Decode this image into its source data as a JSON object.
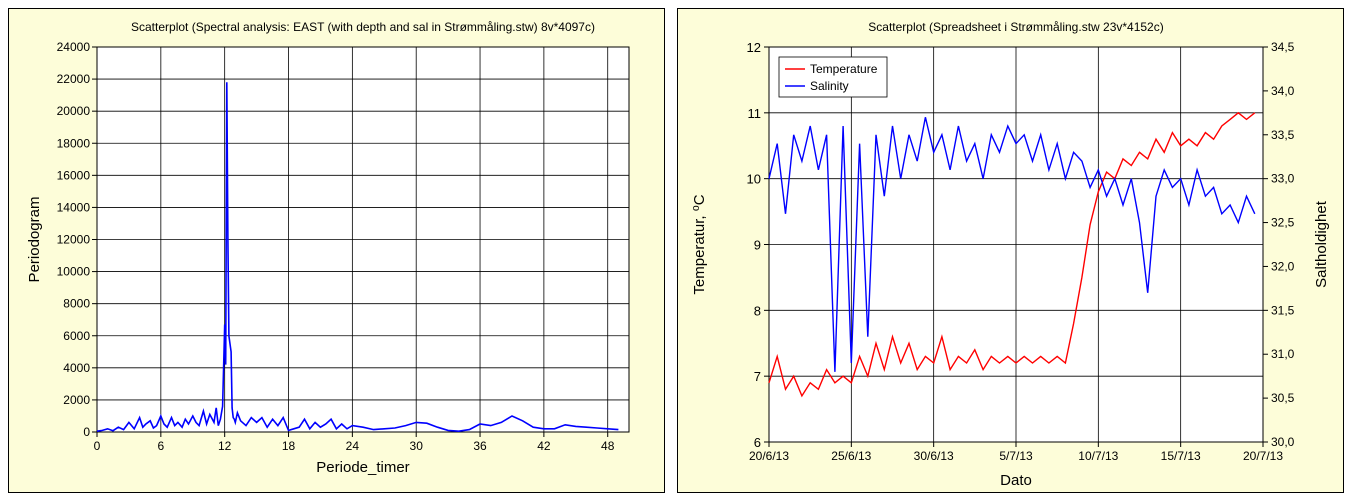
{
  "chart_data": [
    {
      "type": "line",
      "title": "Scatterplot (Spectral analysis: EAST (with depth and sal in Strømmåling.stw) 8v*4097c)",
      "xlabel": "Periode_timer",
      "ylabel": "Periodogram",
      "xlim": [
        0,
        50
      ],
      "ylim": [
        0,
        24000
      ],
      "xticks": [
        "0",
        "6",
        "12",
        "18",
        "24",
        "30",
        "36",
        "42",
        "48"
      ],
      "yticks": [
        "0",
        "2000",
        "4000",
        "6000",
        "8000",
        "10000",
        "12000",
        "14000",
        "16000",
        "18000",
        "20000",
        "22000",
        "24000"
      ],
      "grid": true,
      "series": [
        {
          "color": "#0000ff",
          "x": [
            0,
            0.5,
            1,
            1.5,
            2,
            2.5,
            3,
            3.5,
            4,
            4.3,
            4.6,
            5,
            5.3,
            5.6,
            6,
            6.3,
            6.6,
            7,
            7.3,
            7.6,
            8,
            8.3,
            8.6,
            9,
            9.3,
            9.6,
            10,
            10.3,
            10.6,
            11,
            11.2,
            11.4,
            11.6,
            11.8,
            12.0,
            12.1,
            12.2,
            12.3,
            12.4,
            12.5,
            12.6,
            12.7,
            12.8,
            12.9,
            13.0,
            13.2,
            13.5,
            14,
            14.5,
            15,
            15.5,
            16,
            16.5,
            17,
            17.5,
            18,
            18.5,
            19,
            19.5,
            20,
            20.5,
            21,
            21.5,
            22,
            22.5,
            23,
            23.5,
            24,
            25,
            26,
            27,
            28,
            29,
            30,
            31,
            32,
            33,
            34,
            35,
            36,
            37,
            38,
            39,
            40,
            41,
            42,
            43,
            44,
            45,
            46,
            47,
            48,
            49
          ],
          "y": [
            50,
            100,
            200,
            80,
            300,
            150,
            600,
            200,
            900,
            300,
            500,
            700,
            250,
            400,
            1000,
            500,
            300,
            900,
            400,
            600,
            300,
            800,
            500,
            1000,
            600,
            400,
            1300,
            500,
            1100,
            600,
            1500,
            400,
            800,
            1600,
            6700,
            4200,
            21800,
            12000,
            6000,
            5500,
            5000,
            1500,
            900,
            800,
            600,
            1200,
            700,
            400,
            900,
            600,
            900,
            300,
            800,
            400,
            900,
            100,
            200,
            300,
            800,
            200,
            600,
            300,
            500,
            800,
            200,
            500,
            200,
            400,
            300,
            150,
            200,
            250,
            400,
            600,
            550,
            300,
            100,
            50,
            150,
            500,
            400,
            600,
            1000,
            700,
            300,
            200,
            200,
            450,
            350,
            300,
            250,
            200,
            150
          ]
        }
      ]
    },
    {
      "type": "line",
      "title": "Scatterplot (Spreadsheet i Strømmåling.stw 23v*4152c)",
      "xlabel": "Dato",
      "ylabel": "Temperatur, ⁰C",
      "y2label": "Saltholdighet",
      "xlim": [
        "20/6/13",
        "20/7/13"
      ],
      "ylim": [
        6,
        12
      ],
      "y2lim": [
        30.0,
        34.5
      ],
      "xticks": [
        "20/6/13",
        "25/6/13",
        "30/6/13",
        "5/7/13",
        "10/7/13",
        "15/7/13",
        "20/7/13"
      ],
      "yticks": [
        "6",
        "7",
        "8",
        "9",
        "10",
        "11",
        "12"
      ],
      "y2ticks": [
        "30,0",
        "30,5",
        "31,0",
        "31,5",
        "32,0",
        "32,5",
        "33,0",
        "33,5",
        "34,0",
        "34,5"
      ],
      "grid": true,
      "legend": "top-left",
      "series": [
        {
          "name": "Temperature",
          "color": "#ff0000",
          "axis": "left",
          "x": [
            0,
            0.5,
            1,
            1.5,
            2,
            2.5,
            3,
            3.5,
            4,
            4.5,
            5,
            5.5,
            6,
            6.5,
            7,
            7.5,
            8,
            8.5,
            9,
            9.5,
            10,
            10.5,
            11,
            11.5,
            12,
            12.5,
            13,
            13.5,
            14,
            14.5,
            15,
            15.5,
            16,
            16.5,
            17,
            17.5,
            18,
            18.5,
            19,
            19.5,
            20,
            20.5,
            21,
            21.5,
            22,
            22.5,
            23,
            23.5,
            24,
            24.5,
            25,
            25.5,
            26,
            26.5,
            27,
            27.5,
            28,
            28.5,
            29,
            29.5
          ],
          "y": [
            6.9,
            7.3,
            6.8,
            7.0,
            6.7,
            6.9,
            6.8,
            7.1,
            6.9,
            7.0,
            6.9,
            7.3,
            7.0,
            7.5,
            7.1,
            7.6,
            7.2,
            7.5,
            7.1,
            7.3,
            7.2,
            7.6,
            7.1,
            7.3,
            7.2,
            7.4,
            7.1,
            7.3,
            7.2,
            7.3,
            7.2,
            7.3,
            7.2,
            7.3,
            7.2,
            7.3,
            7.2,
            7.8,
            8.5,
            9.3,
            9.8,
            10.1,
            10.0,
            10.3,
            10.2,
            10.4,
            10.3,
            10.6,
            10.4,
            10.7,
            10.5,
            10.6,
            10.5,
            10.7,
            10.6,
            10.8,
            10.9,
            11.0,
            10.9,
            11.0
          ]
        },
        {
          "name": "Salinity",
          "color": "#0000ff",
          "axis": "right",
          "x": [
            0,
            0.5,
            1,
            1.5,
            2,
            2.5,
            3,
            3.5,
            4,
            4.5,
            5,
            5.5,
            6,
            6.5,
            7,
            7.5,
            8,
            8.5,
            9,
            9.5,
            10,
            10.5,
            11,
            11.5,
            12,
            12.5,
            13,
            13.5,
            14,
            14.5,
            15,
            15.5,
            16,
            16.5,
            17,
            17.5,
            18,
            18.5,
            19,
            19.5,
            20,
            20.5,
            21,
            21.5,
            22,
            22.5,
            23,
            23.5,
            24,
            24.5,
            25,
            25.5,
            26,
            26.5,
            27,
            27.5,
            28,
            28.5,
            29,
            29.5
          ],
          "y": [
            33.0,
            33.4,
            32.6,
            33.5,
            33.2,
            33.6,
            33.1,
            33.5,
            30.8,
            33.6,
            30.9,
            33.4,
            31.2,
            33.5,
            32.8,
            33.6,
            33.0,
            33.5,
            33.2,
            33.7,
            33.3,
            33.5,
            33.1,
            33.6,
            33.2,
            33.4,
            33.0,
            33.5,
            33.3,
            33.6,
            33.4,
            33.5,
            33.2,
            33.5,
            33.1,
            33.4,
            33.0,
            33.3,
            33.2,
            32.9,
            33.1,
            32.8,
            33.0,
            32.7,
            33.0,
            32.5,
            31.7,
            32.8,
            33.1,
            32.9,
            33.0,
            32.7,
            33.1,
            32.8,
            32.9,
            32.6,
            32.7,
            32.5,
            32.8,
            32.6
          ]
        }
      ]
    }
  ]
}
